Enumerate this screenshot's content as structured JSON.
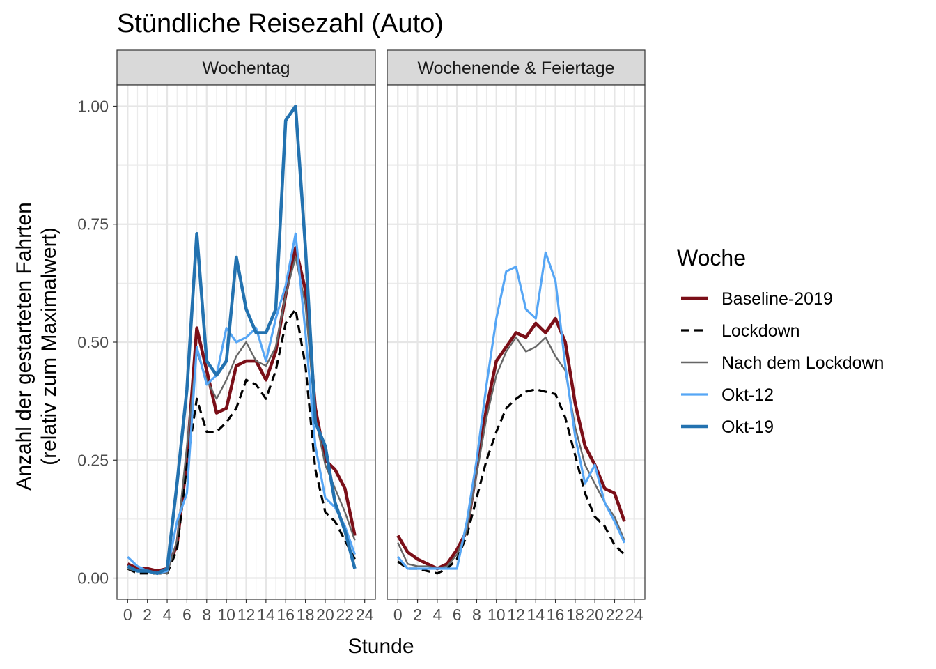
{
  "title": "Stündliche Reisezahl (Auto)",
  "xlabel": "Stunde",
  "ylabel_line1": "Anzahl der gestarteten Fahrten",
  "ylabel_line2": "(relativ zum Maximalwert)",
  "legend_title": "Woche",
  "chart_data": {
    "type": "line",
    "title": "Stündliche Reisezahl (Auto)",
    "xlabel": "Stunde",
    "ylabel": "Anzahl der gestarteten Fahrten (relativ zum Maximalwert)",
    "xlim": [
      0,
      24
    ],
    "ylim": [
      0,
      1
    ],
    "x_ticks": [
      0,
      2,
      4,
      6,
      8,
      10,
      12,
      14,
      16,
      18,
      20,
      22,
      24
    ],
    "y_ticks": [
      "0.00",
      "0.25",
      "0.50",
      "0.75",
      "1.00"
    ],
    "y_tick_values": [
      0,
      0.25,
      0.5,
      0.75,
      1.0
    ],
    "grid": true,
    "legend_position": "right",
    "series_styles": [
      {
        "name": "Baseline-2019",
        "color": "#7b0f18",
        "dash": "solid",
        "width": "thick"
      },
      {
        "name": "Lockdown",
        "color": "#000000",
        "dash": "dashed",
        "width": "medium"
      },
      {
        "name": "Nach dem Lockdown",
        "color": "#666666",
        "dash": "solid",
        "width": "thin"
      },
      {
        "name": "Okt-12",
        "color": "#56a6f5",
        "dash": "solid",
        "width": "medium"
      },
      {
        "name": "Okt-19",
        "color": "#2372b0",
        "dash": "solid",
        "width": "thick"
      }
    ],
    "facets": [
      {
        "label": "Wochentag",
        "x": [
          0,
          1,
          2,
          3,
          4,
          5,
          6,
          7,
          8,
          9,
          10,
          11,
          12,
          13,
          14,
          15,
          16,
          17,
          18,
          19,
          20,
          21,
          22,
          23
        ],
        "series": [
          {
            "name": "Baseline-2019",
            "values": [
              0.03,
              0.02,
              0.02,
              0.015,
              0.02,
              0.07,
              0.25,
              0.53,
              0.44,
              0.35,
              0.36,
              0.45,
              0.46,
              0.46,
              0.42,
              0.48,
              0.6,
              0.7,
              0.61,
              0.36,
              0.25,
              0.23,
              0.19,
              0.09
            ]
          },
          {
            "name": "Lockdown",
            "values": [
              0.02,
              0.01,
              0.01,
              0.01,
              0.01,
              0.06,
              0.24,
              0.38,
              0.31,
              0.31,
              0.33,
              0.36,
              0.42,
              0.41,
              0.38,
              0.44,
              0.54,
              0.57,
              0.45,
              0.23,
              0.14,
              0.12,
              0.08,
              0.04
            ]
          },
          {
            "name": "Nach dem Lockdown",
            "values": [
              0.02,
              0.015,
              0.015,
              0.01,
              0.01,
              0.08,
              0.28,
              0.48,
              0.42,
              0.38,
              0.42,
              0.47,
              0.5,
              0.46,
              0.45,
              0.49,
              0.6,
              0.68,
              0.58,
              0.34,
              0.24,
              0.19,
              0.14,
              0.08
            ]
          },
          {
            "name": "Okt-12",
            "values": [
              0.045,
              0.025,
              0.015,
              0.01,
              0.015,
              0.12,
              0.18,
              0.49,
              0.41,
              0.43,
              0.53,
              0.5,
              0.51,
              0.53,
              0.46,
              0.55,
              0.62,
              0.73,
              0.52,
              0.28,
              0.17,
              0.15,
              0.11,
              0.05
            ]
          },
          {
            "name": "Okt-19",
            "values": [
              0.025,
              0.015,
              0.015,
              0.01,
              0.02,
              0.2,
              0.4,
              0.73,
              0.46,
              0.43,
              0.46,
              0.68,
              0.57,
              0.52,
              0.52,
              0.57,
              0.97,
              1.0,
              0.7,
              0.33,
              0.28,
              0.16,
              0.1,
              0.02
            ]
          }
        ]
      },
      {
        "label": "Wochenende & Feiertage",
        "x": [
          0,
          1,
          2,
          3,
          4,
          5,
          6,
          7,
          8,
          9,
          10,
          11,
          12,
          13,
          14,
          15,
          16,
          17,
          18,
          19,
          20,
          21,
          22,
          23
        ],
        "series": [
          {
            "name": "Baseline-2019",
            "values": [
              0.09,
              0.055,
              0.04,
              0.03,
              0.02,
              0.03,
              0.06,
              0.1,
              0.23,
              0.36,
              0.46,
              0.49,
              0.52,
              0.51,
              0.54,
              0.52,
              0.55,
              0.5,
              0.37,
              0.28,
              0.24,
              0.19,
              0.18,
              0.12
            ]
          },
          {
            "name": "Lockdown",
            "values": [
              0.035,
              0.02,
              0.02,
              0.015,
              0.01,
              0.02,
              0.04,
              0.09,
              0.17,
              0.25,
              0.31,
              0.36,
              0.38,
              0.395,
              0.4,
              0.395,
              0.39,
              0.34,
              0.26,
              0.18,
              0.13,
              0.11,
              0.07,
              0.05
            ]
          },
          {
            "name": "Nach dem Lockdown",
            "values": [
              0.075,
              0.03,
              0.025,
              0.025,
              0.02,
              0.025,
              0.05,
              0.1,
              0.22,
              0.34,
              0.43,
              0.48,
              0.51,
              0.48,
              0.49,
              0.51,
              0.47,
              0.44,
              0.32,
              0.24,
              0.2,
              0.16,
              0.13,
              0.08
            ]
          },
          {
            "name": "Okt-12",
            "values": [
              0.045,
              0.02,
              0.02,
              0.02,
              0.02,
              0.02,
              0.02,
              0.12,
              0.25,
              0.41,
              0.55,
              0.65,
              0.66,
              0.57,
              0.55,
              0.69,
              0.63,
              0.45,
              0.3,
              0.2,
              0.24,
              0.16,
              0.12,
              0.075
            ]
          }
        ]
      }
    ]
  }
}
